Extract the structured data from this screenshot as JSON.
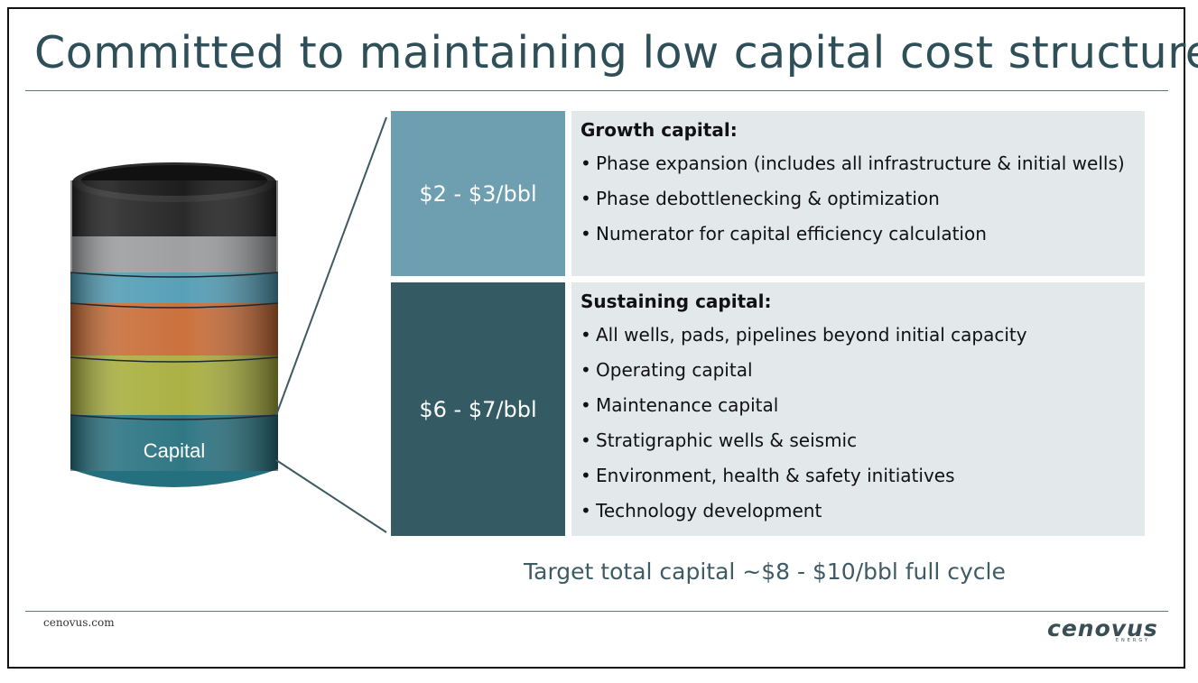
{
  "slide": {
    "title": "Committed to maintaining low capital cost structure",
    "footer_url": "cenovus.com",
    "logo_text": "cenovus",
    "logo_subtext": "ENERGY",
    "target": "Target total capital ~$8 - $10/bbl full cycle"
  },
  "barrel": {
    "label": "Capital",
    "band_colors": [
      "#1f1f1f",
      "#9a9b9d",
      "#4f9bb4",
      "#c86a33",
      "#a7ad3a",
      "#25707e"
    ]
  },
  "growth": {
    "range": "$2 - $3/bbl",
    "heading": "Growth capital:",
    "bullets": [
      "Phase expansion (includes all infrastructure & initial wells)",
      "Phase debottlenecking & optimization",
      "Numerator for capital efficiency calculation"
    ]
  },
  "sustaining": {
    "range": "$6 - $7/bbl",
    "heading": "Sustaining capital:",
    "bullets": [
      "All wells, pads, pipelines beyond initial capacity",
      "Operating capital",
      "Maintenance capital",
      "Stratigraphic wells & seismic",
      "Environment, health & safety initiatives",
      "Technology development"
    ]
  },
  "colors": {
    "title": "#2f4f58",
    "growth_box": "#6e9fb0",
    "sustaining_box": "#345a63",
    "content_bg": "#e3e8eb"
  }
}
